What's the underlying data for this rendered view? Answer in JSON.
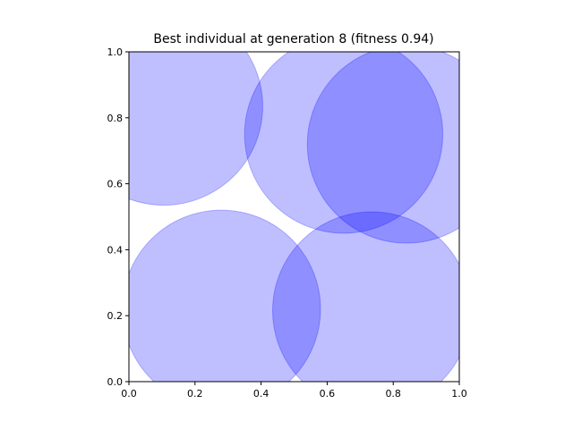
{
  "chart_data": {
    "type": "scatter",
    "title": "Best individual at generation 8 (fitness 0.94)",
    "xlabel": "",
    "ylabel": "",
    "xlim": [
      0.0,
      1.0
    ],
    "ylim": [
      0.0,
      1.0
    ],
    "xticks": [
      "0.0",
      "0.2",
      "0.4",
      "0.6",
      "0.8",
      "1.0"
    ],
    "yticks": [
      "0.0",
      "0.2",
      "0.4",
      "0.6",
      "0.8",
      "1.0"
    ],
    "grid": false,
    "legend": "none",
    "circle_color": "#0000ff",
    "circle_alpha": 0.25,
    "circles": [
      {
        "x": 0.105,
        "y": 0.835,
        "r": 0.3
      },
      {
        "x": 0.65,
        "y": 0.75,
        "r": 0.3
      },
      {
        "x": 0.84,
        "y": 0.72,
        "r": 0.3
      },
      {
        "x": 0.28,
        "y": 0.22,
        "r": 0.3
      },
      {
        "x": 0.735,
        "y": 0.215,
        "r": 0.3
      }
    ]
  }
}
